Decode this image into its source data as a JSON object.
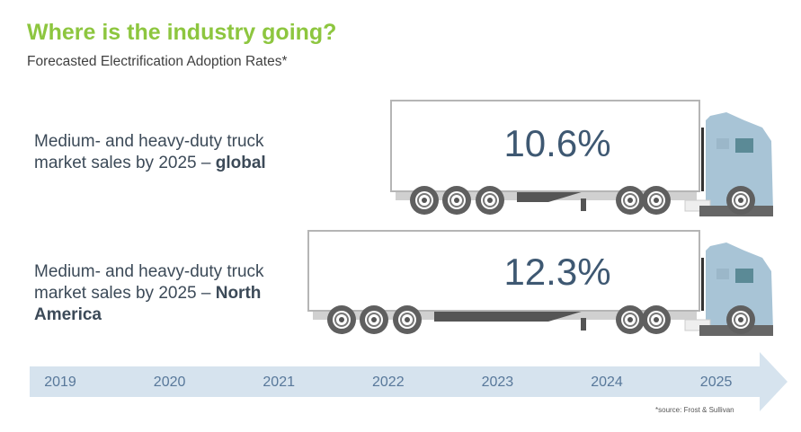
{
  "header": {
    "title": "Where is the industry going?",
    "subtitle": "Forecasted Electrification Adoption Rates*"
  },
  "rows": [
    {
      "label_prefix": "Medium- and heavy-duty truck market sales by 2025 –",
      "label_bold": "global",
      "value": "10.6%"
    },
    {
      "label_prefix": "Medium- and heavy-duty truck market sales by 2025 –",
      "label_bold": "North America",
      "value": "12.3%"
    }
  ],
  "timeline": {
    "years": [
      "2019",
      "2020",
      "2021",
      "2022",
      "2023",
      "2024",
      "2025"
    ]
  },
  "footnote": "*source: Frost & Sullivan",
  "colors": {
    "title": "#8dc63f",
    "timeline": "#d6e3ee",
    "cab": "#a8c4d6",
    "value_text": "#3e5872"
  }
}
